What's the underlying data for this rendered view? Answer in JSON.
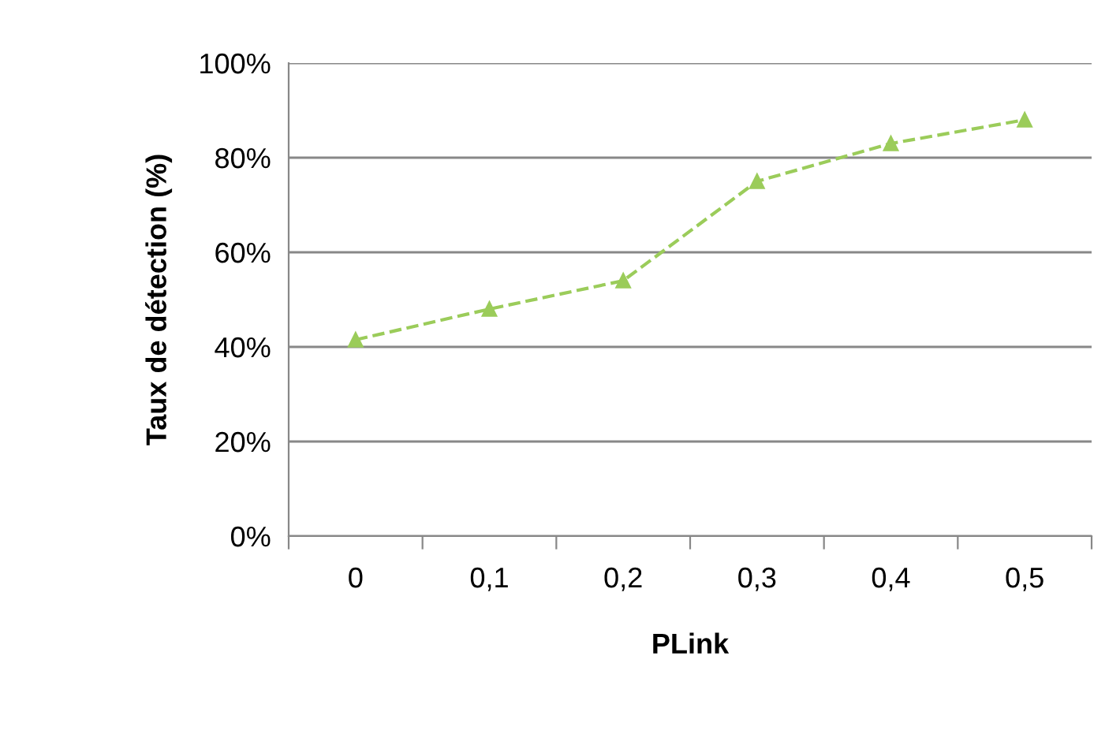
{
  "chart_data": {
    "type": "line",
    "xlabel": "PLink",
    "ylabel": "Taux de détection (%)",
    "categories": [
      "0",
      "0,1",
      "0,2",
      "0,3",
      "0,4",
      "0,5"
    ],
    "series": [
      {
        "color": "#9bcc5a",
        "values": [
          41.5,
          48,
          54,
          75,
          83,
          88
        ]
      }
    ],
    "ylim": [
      0,
      100
    ],
    "yticks": [
      {
        "value": 0,
        "label": "0%"
      },
      {
        "value": 20,
        "label": "20%"
      },
      {
        "value": 40,
        "label": "40%"
      },
      {
        "value": 60,
        "label": "60%"
      },
      {
        "value": 80,
        "label": "80%"
      },
      {
        "value": 100,
        "label": "100%"
      }
    ],
    "grid": "y",
    "marker": "triangle",
    "line_style": "dashed"
  }
}
